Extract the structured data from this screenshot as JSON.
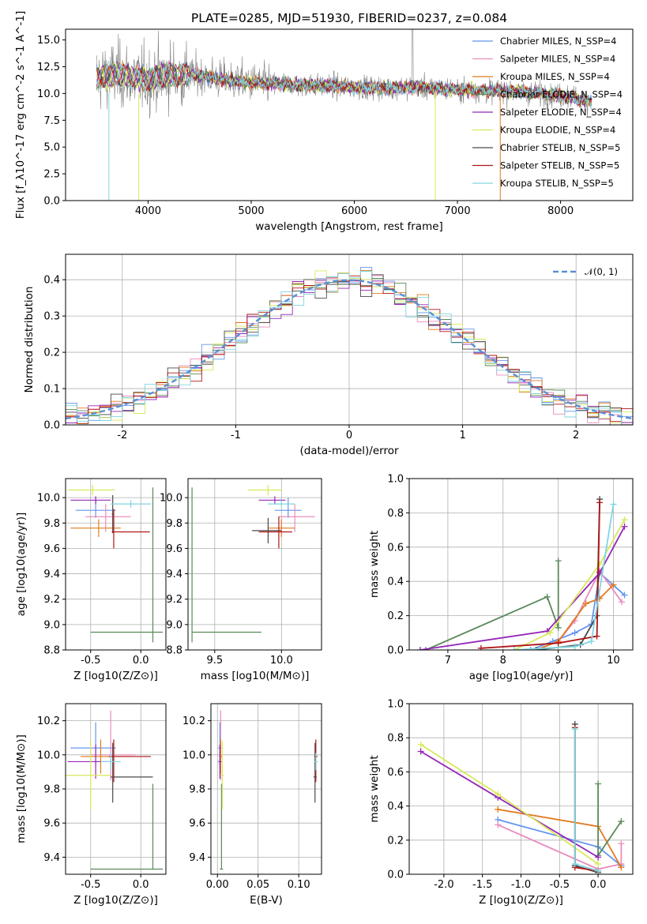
{
  "chart_data": [
    {
      "id": "spectrum",
      "type": "line",
      "title": "PLATE=0285, MJD=51930, FIBERID=0237, z=0.084",
      "xlabel": "wavelength [Angstrom, rest frame]",
      "ylabel": "Flux [f_λ10^-17 erg cm^-2 s^-1 A^-1]",
      "xlim": [
        3200,
        8700
      ],
      "ylim": [
        0,
        16
      ],
      "xticks": [
        4000,
        5000,
        6000,
        7000,
        8000
      ],
      "yticks": [
        0.0,
        2.5,
        5.0,
        7.5,
        10.0,
        12.5,
        15.0
      ],
      "legend_position": "top-right",
      "grid": false,
      "series": [
        {
          "name": "Chabrier MILES, N_SSP=4",
          "color": "#6495ed"
        },
        {
          "name": "Salpeter MILES, N_SSP=4",
          "color": "#e98cbe"
        },
        {
          "name": "Kroupa MILES, N_SSP=4",
          "color": "#e07b1f"
        },
        {
          "name": "Chabrier ELODIE, N_SSP=4",
          "color": "#5a8a5a"
        },
        {
          "name": "Salpeter ELODIE, N_SSP=4",
          "color": "#9526b8"
        },
        {
          "name": "Kroupa ELODIE, N_SSP=4",
          "color": "#d9e85a"
        },
        {
          "name": "Chabrier STELIB, N_SSP=5",
          "color": "#4a4a4a"
        },
        {
          "name": "Salpeter STELIB, N_SSP=5",
          "color": "#b01515"
        },
        {
          "name": "Kroupa STELIB, N_SSP=5",
          "color": "#7fd6e0"
        }
      ],
      "data_color": "#808080",
      "continuum": {
        "x": [
          3500,
          3700,
          3900,
          4000,
          4200,
          4500,
          4800,
          5000,
          5200,
          5500,
          5800,
          6000,
          6300,
          6600,
          6900,
          7200,
          7500,
          7800,
          8100,
          8300
        ],
        "y": [
          11.5,
          11.8,
          11.4,
          11.3,
          11.8,
          11.7,
          11.2,
          11.0,
          10.9,
          10.8,
          10.7,
          10.6,
          10.5,
          10.6,
          10.4,
          10.3,
          10.2,
          10.0,
          9.7,
          9.2
        ]
      }
    },
    {
      "id": "residuals",
      "type": "line",
      "xlabel": "(data-model)/error",
      "ylabel": "Normed distribution",
      "xlim": [
        -2.5,
        2.5
      ],
      "ylim": [
        0,
        0.47
      ],
      "xticks": [
        -2,
        -1,
        0,
        1,
        2
      ],
      "yticks": [
        0.0,
        0.1,
        0.2,
        0.3,
        0.4
      ],
      "grid": true,
      "legend": "𝒩(0, 1)",
      "legend_position": "top-right",
      "gaussian_color": "#5b8fd6"
    },
    {
      "id": "age-vs-Z",
      "type": "scatter",
      "xlabel": "Z [log10(Z/Z⊙)]",
      "ylabel": "age [log10(age/yr)]",
      "xlim": [
        -0.75,
        0.25
      ],
      "ylim": [
        8.8,
        10.15
      ],
      "xticks": [
        -0.5,
        0.0
      ],
      "yticks": [
        8.8,
        9.0,
        9.2,
        9.4,
        9.6,
        9.8,
        10.0
      ],
      "grid": true,
      "points": [
        {
          "x": -0.45,
          "xerr": [
            0.2,
            0.2
          ],
          "y": 9.9,
          "yerr": [
            0.06,
            0.1
          ],
          "color": "#6495ed"
        },
        {
          "x": -0.35,
          "xerr": [
            0.2,
            0.25
          ],
          "y": 9.85,
          "yerr": [
            0.12,
            0.1
          ],
          "color": "#e98cbe"
        },
        {
          "x": -0.42,
          "xerr": [
            0.28,
            0.22
          ],
          "y": 9.76,
          "yerr": [
            0.07,
            0.07
          ],
          "color": "#e07b1f"
        },
        {
          "x": 0.12,
          "xerr": [
            0.62,
            0.1
          ],
          "y": 8.94,
          "yerr": [
            0.08,
            1.14
          ],
          "color": "#5a8a5a"
        },
        {
          "x": -0.45,
          "xerr": [
            0.25,
            0.15
          ],
          "y": 9.98,
          "yerr": [
            0.03,
            0.03
          ],
          "color": "#9526b8"
        },
        {
          "x": -0.48,
          "xerr": [
            0.25,
            0.22
          ],
          "y": 10.06,
          "yerr": [
            0.04,
            0.04
          ],
          "color": "#d9e85a"
        },
        {
          "x": -0.28,
          "xerr": [
            0.01,
            0.01
          ],
          "y": 9.87,
          "yerr": [
            0.15,
            0.15
          ],
          "color": "#4a4a4a"
        },
        {
          "x": -0.27,
          "xerr": [
            0.02,
            0.36
          ],
          "y": 9.73,
          "yerr": [
            0.13,
            0.18
          ],
          "color": "#b01515"
        },
        {
          "x": -0.1,
          "xerr": [
            0.2,
            0.2
          ],
          "y": 9.95,
          "yerr": [
            0.03,
            0.03
          ],
          "color": "#7fd6e0"
        }
      ]
    },
    {
      "id": "age-vs-mass",
      "type": "scatter",
      "xlabel": "mass [log10(M/M⊙)]",
      "xlim": [
        9.3,
        10.3
      ],
      "ylim": [
        8.8,
        10.15
      ],
      "xticks": [
        9.5,
        10.0
      ],
      "yticks": [
        8.8,
        9.0,
        9.2,
        9.4,
        9.6,
        9.8,
        10.0
      ],
      "grid": true,
      "points": [
        {
          "x": 10.05,
          "xerr": [
            0.1,
            0.1
          ],
          "y": 9.9,
          "yerr": [
            0.06,
            0.1
          ],
          "color": "#6495ed"
        },
        {
          "x": 10.1,
          "xerr": [
            0.12,
            0.15
          ],
          "y": 9.85,
          "yerr": [
            0.12,
            0.1
          ],
          "color": "#e98cbe"
        },
        {
          "x": 10.0,
          "xerr": [
            0.1,
            0.1
          ],
          "y": 9.76,
          "yerr": [
            0.07,
            0.07
          ],
          "color": "#e07b1f"
        },
        {
          "x": 9.33,
          "xerr": [
            0.0,
            0.52
          ],
          "y": 8.94,
          "yerr": [
            0.08,
            1.14
          ],
          "color": "#5a8a5a"
        },
        {
          "x": 9.95,
          "xerr": [
            0.12,
            0.08
          ],
          "y": 9.98,
          "yerr": [
            0.03,
            0.03
          ],
          "color": "#9526b8"
        },
        {
          "x": 9.9,
          "xerr": [
            0.15,
            0.1
          ],
          "y": 10.06,
          "yerr": [
            0.04,
            0.04
          ],
          "color": "#d9e85a"
        },
        {
          "x": 9.9,
          "xerr": [
            0.12,
            0.1
          ],
          "y": 9.74,
          "yerr": [
            0.1,
            0.1
          ],
          "color": "#4a4a4a"
        },
        {
          "x": 9.98,
          "xerr": [
            0.15,
            0.1
          ],
          "y": 9.73,
          "yerr": [
            0.13,
            0.12
          ],
          "color": "#b01515"
        },
        {
          "x": 10.0,
          "xerr": [
            0.1,
            0.1
          ],
          "y": 9.95,
          "yerr": [
            0.03,
            0.03
          ],
          "color": "#7fd6e0"
        }
      ]
    },
    {
      "id": "massweight-vs-age",
      "type": "line",
      "xlabel": "age [log10(age/yr)]",
      "ylabel": "mass weight",
      "xlim": [
        6.3,
        10.35
      ],
      "ylim": [
        0,
        1.0
      ],
      "xticks": [
        7,
        8,
        9,
        10
      ],
      "yticks": [
        0.0,
        0.2,
        0.4,
        0.6,
        0.8,
        1.0
      ],
      "grid": true,
      "series": [
        {
          "color": "#6495ed",
          "x": [
            8.5,
            8.9,
            9.3,
            9.6,
            9.75,
            10.2
          ],
          "y": [
            0.0,
            0.05,
            0.1,
            0.15,
            0.45,
            0.32
          ]
        },
        {
          "color": "#e98cbe",
          "x": [
            8.6,
            9.0,
            9.3,
            9.75,
            10.15
          ],
          "y": [
            0.0,
            0.05,
            0.17,
            0.46,
            0.28
          ]
        },
        {
          "color": "#e07b1f",
          "x": [
            8.6,
            9.0,
            9.5,
            9.75,
            10.0
          ],
          "y": [
            0.0,
            0.05,
            0.27,
            0.3,
            0.38
          ]
        },
        {
          "color": "#5a8a5a",
          "x": [
            6.6,
            8.8,
            9.0,
            9.0
          ],
          "y": [
            0.0,
            0.31,
            0.13,
            0.52
          ]
        },
        {
          "color": "#9526b8",
          "x": [
            6.5,
            8.8,
            9.75,
            10.2
          ],
          "y": [
            0.0,
            0.11,
            0.45,
            0.72
          ]
        },
        {
          "color": "#d9e85a",
          "x": [
            8.2,
            8.85,
            9.75,
            10.2
          ],
          "y": [
            0.0,
            0.1,
            0.5,
            0.76
          ]
        },
        {
          "color": "#4a4a4a",
          "x": [
            8.6,
            9.4,
            9.7,
            9.75
          ],
          "y": [
            0.0,
            0.03,
            0.2,
            0.88
          ]
        },
        {
          "color": "#b01515",
          "x": [
            7.6,
            9.0,
            9.7,
            9.75
          ],
          "y": [
            0.01,
            0.04,
            0.08,
            0.86
          ]
        },
        {
          "color": "#7fd6e0",
          "x": [
            8.2,
            9.3,
            9.6,
            10.0
          ],
          "y": [
            0.0,
            0.02,
            0.05,
            0.85
          ]
        }
      ]
    },
    {
      "id": "mass-vs-Z",
      "type": "scatter",
      "xlabel": "Z [log10(Z/Z⊙)]",
      "ylabel": "mass [log10(M/M⊙)]",
      "xlim": [
        -0.75,
        0.25
      ],
      "ylim": [
        9.3,
        10.3
      ],
      "xticks": [
        -0.5,
        0.0
      ],
      "yticks": [
        9.4,
        9.6,
        9.8,
        10.0,
        10.2
      ],
      "grid": true,
      "points": [
        {
          "x": -0.45,
          "xerr": [
            0.25,
            0.2
          ],
          "y": 10.04,
          "yerr": [
            0.1,
            0.15
          ],
          "color": "#6495ed"
        },
        {
          "x": -0.3,
          "xerr": [
            0.2,
            0.25
          ],
          "y": 10.0,
          "yerr": [
            0.15,
            0.26
          ],
          "color": "#e98cbe"
        },
        {
          "x": -0.4,
          "xerr": [
            0.2,
            0.3
          ],
          "y": 9.99,
          "yerr": [
            0.1,
            0.1
          ],
          "color": "#e07b1f"
        },
        {
          "x": 0.12,
          "xerr": [
            0.62,
            0.1
          ],
          "y": 9.33,
          "yerr": [
            0.0,
            0.5
          ],
          "color": "#5a8a5a"
        },
        {
          "x": -0.45,
          "xerr": [
            0.28,
            0.15
          ],
          "y": 9.96,
          "yerr": [
            0.1,
            0.1
          ],
          "color": "#9526b8"
        },
        {
          "x": -0.5,
          "xerr": [
            0.25,
            0.2
          ],
          "y": 9.88,
          "yerr": [
            0.2,
            0.2
          ],
          "color": "#d9e85a"
        },
        {
          "x": -0.28,
          "xerr": [
            0.02,
            0.4
          ],
          "y": 9.87,
          "yerr": [
            0.15,
            0.2
          ],
          "color": "#4a4a4a"
        },
        {
          "x": -0.27,
          "xerr": [
            0.05,
            0.37
          ],
          "y": 9.99,
          "yerr": [
            0.15,
            0.1
          ],
          "color": "#b01515"
        },
        {
          "x": -0.3,
          "xerr": [
            0.1,
            0.1
          ],
          "y": 9.96,
          "yerr": [
            0.05,
            0.05
          ],
          "color": "#7fd6e0"
        }
      ]
    },
    {
      "id": "mass-vs-EBV",
      "type": "scatter",
      "xlabel": "E(B-V)",
      "xlim": [
        -0.008,
        0.128
      ],
      "ylim": [
        9.3,
        10.3
      ],
      "xticks": [
        0.0,
        0.05,
        0.1
      ],
      "yticks": [
        9.4,
        9.6,
        9.8,
        10.0,
        10.2
      ],
      "grid": true,
      "points": [
        {
          "x": 0.003,
          "xerr": [
            0.002,
            0.002
          ],
          "y": 10.04,
          "yerr": [
            0.1,
            0.15
          ],
          "color": "#6495ed"
        },
        {
          "x": 0.004,
          "xerr": [
            0.002,
            0.002
          ],
          "y": 10.0,
          "yerr": [
            0.15,
            0.26
          ],
          "color": "#e98cbe"
        },
        {
          "x": 0.004,
          "xerr": [
            0.002,
            0.002
          ],
          "y": 9.99,
          "yerr": [
            0.1,
            0.1
          ],
          "color": "#e07b1f"
        },
        {
          "x": 0.005,
          "xerr": [
            0.002,
            0.002
          ],
          "y": 9.33,
          "yerr": [
            0.0,
            0.5
          ],
          "color": "#5a8a5a"
        },
        {
          "x": 0.003,
          "xerr": [
            0.002,
            0.002
          ],
          "y": 9.96,
          "yerr": [
            0.1,
            0.1
          ],
          "color": "#9526b8"
        },
        {
          "x": 0.006,
          "xerr": [
            0.002,
            0.002
          ],
          "y": 9.88,
          "yerr": [
            0.2,
            0.2
          ],
          "color": "#d9e85a"
        },
        {
          "x": 0.12,
          "xerr": [
            0.002,
            0.002
          ],
          "y": 9.87,
          "yerr": [
            0.15,
            0.2
          ],
          "color": "#4a4a4a"
        },
        {
          "x": 0.121,
          "xerr": [
            0.002,
            0.002
          ],
          "y": 9.99,
          "yerr": [
            0.15,
            0.1
          ],
          "color": "#b01515"
        },
        {
          "x": 0.121,
          "xerr": [
            0.002,
            0.002
          ],
          "y": 9.96,
          "yerr": [
            0.05,
            0.05
          ],
          "color": "#7fd6e0"
        }
      ]
    },
    {
      "id": "massweight-vs-Z",
      "type": "line",
      "xlabel": "Z [log10(Z/Z⊙)]",
      "ylabel": "mass weight",
      "xlim": [
        -2.45,
        0.45
      ],
      "ylim": [
        0,
        1.0
      ],
      "xticks": [
        -2.0,
        -1.5,
        -1.0,
        -0.5,
        0.0
      ],
      "yticks": [
        0.0,
        0.2,
        0.4,
        0.6,
        0.8,
        1.0
      ],
      "grid": true,
      "series": [
        {
          "color": "#6495ed",
          "x": [
            -1.3,
            0.0,
            0.3
          ],
          "y": [
            0.32,
            0.16,
            0.05
          ]
        },
        {
          "color": "#e98cbe",
          "x": [
            -1.3,
            0.0,
            0.3,
            0.3
          ],
          "y": [
            0.29,
            0.03,
            0.06,
            0.18
          ]
        },
        {
          "color": "#e07b1f",
          "x": [
            -1.3,
            0.0,
            0.3
          ],
          "y": [
            0.38,
            0.28,
            0.04
          ]
        },
        {
          "color": "#5a8a5a",
          "x": [
            0.0,
            0.0,
            0.3
          ],
          "y": [
            0.53,
            0.11,
            0.31
          ]
        },
        {
          "color": "#9526b8",
          "x": [
            -2.3,
            -1.3,
            0.0
          ],
          "y": [
            0.72,
            0.45,
            0.1
          ]
        },
        {
          "color": "#d9e85a",
          "x": [
            -2.3,
            -1.3,
            0.0
          ],
          "y": [
            0.76,
            0.47,
            0.06
          ]
        },
        {
          "color": "#4a4a4a",
          "x": [
            -0.3,
            -0.3,
            0.0
          ],
          "y": [
            0.88,
            0.05,
            0.01
          ]
        },
        {
          "color": "#b01515",
          "x": [
            -0.3,
            -0.3,
            0.0
          ],
          "y": [
            0.86,
            0.04,
            0.02
          ]
        },
        {
          "color": "#7fd6e0",
          "x": [
            -0.3,
            -0.3,
            0.0
          ],
          "y": [
            0.85,
            0.06,
            0.02
          ]
        }
      ]
    }
  ]
}
